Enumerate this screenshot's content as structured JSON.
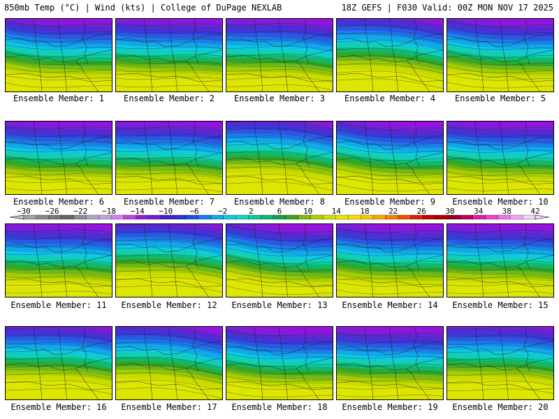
{
  "header": {
    "left": "850mb Temp (°C) | Wind (kts) | College of DuPage NEXLAB",
    "right": "18Z GEFS | F030 Valid: 00Z MON NOV 17 2025"
  },
  "label_prefix": "Ensemble Member: ",
  "members": [
    1,
    2,
    3,
    4,
    5,
    6,
    7,
    8,
    9,
    10,
    11,
    12,
    13,
    14,
    15,
    16,
    17,
    18,
    19,
    20
  ],
  "colorbar": {
    "tick_labels": [
      "-30",
      "-26",
      "-22",
      "-18",
      "-14",
      "-10",
      "-6",
      "-2",
      "2",
      "6",
      "10",
      "14",
      "18",
      "22",
      "26",
      "30",
      "34",
      "38",
      "42"
    ],
    "colors": [
      "#a0a0a0",
      "#8a8a8a",
      "#787878",
      "#666666",
      "#8a8aa0",
      "#a8a8c8",
      "#c8a0e0",
      "#d080f0",
      "#c040e0",
      "#9020d0",
      "#7020c8",
      "#4a20c0",
      "#3030d0",
      "#2050e0",
      "#1880e8",
      "#10a8e8",
      "#10c8e0",
      "#10d8c8",
      "#10c8a0",
      "#10b878",
      "#10a050",
      "#40a020",
      "#80b810",
      "#b0d000",
      "#d0e000",
      "#e8e800",
      "#f8e000",
      "#f8c800",
      "#f8a800",
      "#f88000",
      "#f05000",
      "#e02000",
      "#c80000",
      "#a00000",
      "#900020",
      "#c00060",
      "#e020a0",
      "#f040d0",
      "#f070f0",
      "#f8a0f8",
      "#f8d0f8"
    ],
    "range": [
      -30,
      42
    ]
  }
}
